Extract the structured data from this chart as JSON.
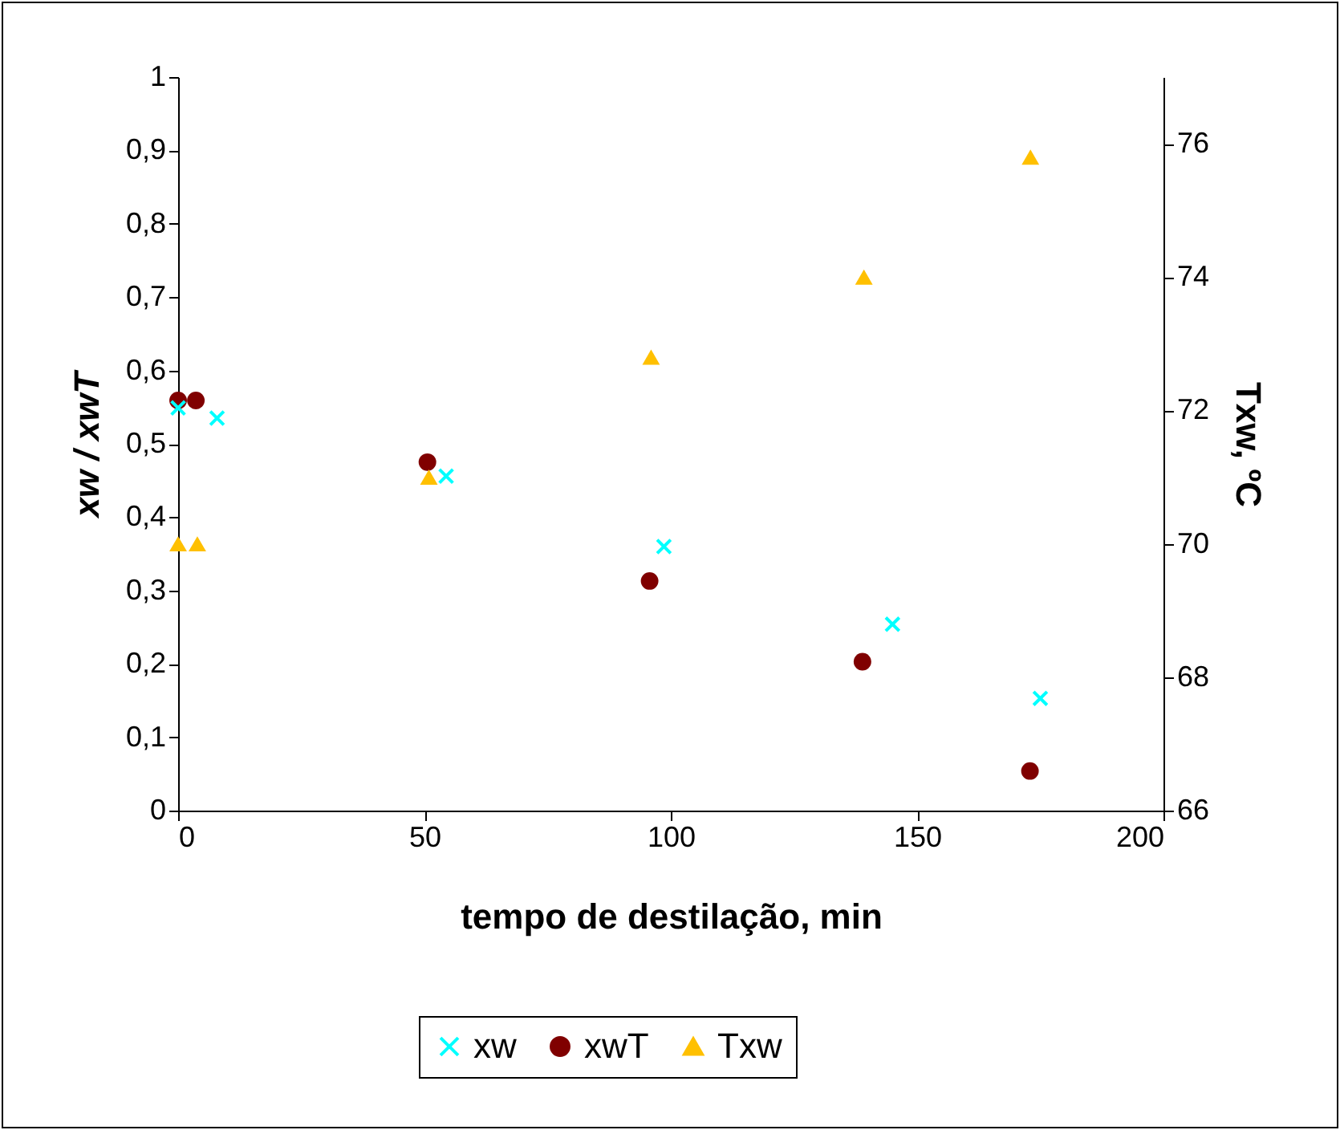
{
  "chart_data": {
    "type": "scatter",
    "xlabel": "tempo de destilação, min",
    "ylabel": "xw / xwT",
    "y2label": "Txw, ºC",
    "xlim": [
      0,
      200
    ],
    "xticks": [
      0,
      50,
      100,
      150,
      200
    ],
    "ylim": [
      0,
      1
    ],
    "yticks": [
      0,
      {
        "value": 0.1,
        "label": "0,1"
      },
      {
        "value": 0.2,
        "label": "0,2"
      },
      {
        "value": 0.3,
        "label": "0,3"
      },
      {
        "value": 0.4,
        "label": "0,4"
      },
      {
        "value": 0.5,
        "label": "0,5"
      },
      {
        "value": 0.6,
        "label": "0,6"
      },
      {
        "value": 0.7,
        "label": "0,7"
      },
      {
        "value": 0.8,
        "label": "0,8"
      },
      {
        "value": 0.9,
        "label": "0,9"
      },
      1
    ],
    "y2lim": [
      66,
      77
    ],
    "y2ticks": [
      66,
      68,
      70,
      72,
      74,
      76
    ],
    "grid": false,
    "legend": "bottom",
    "series": [
      {
        "name": "xw",
        "color": "#00ffff",
        "marker": "cross",
        "x": [
          0,
          7.9,
          54.4,
          98.6,
          145,
          175
        ],
        "values": [
          0.549,
          0.535,
          0.456,
          0.36,
          0.254,
          0.153
        ]
      },
      {
        "name": "xwT",
        "color": "#800000",
        "marker": "circle",
        "x": [
          0,
          3.6,
          50.6,
          95.7,
          138.9,
          172.9
        ],
        "values": [
          0.559,
          0.559,
          0.475,
          0.313,
          0.203,
          0.054
        ]
      },
      {
        "name": "Txw",
        "color": "#ffc000",
        "marker": "triangle",
        "axis": "y2",
        "x": [
          0,
          3.9,
          50.9,
          96,
          139.2,
          173
        ],
        "values": [
          70.0,
          70.0,
          71.0,
          72.8,
          74.0,
          75.8
        ]
      }
    ]
  }
}
